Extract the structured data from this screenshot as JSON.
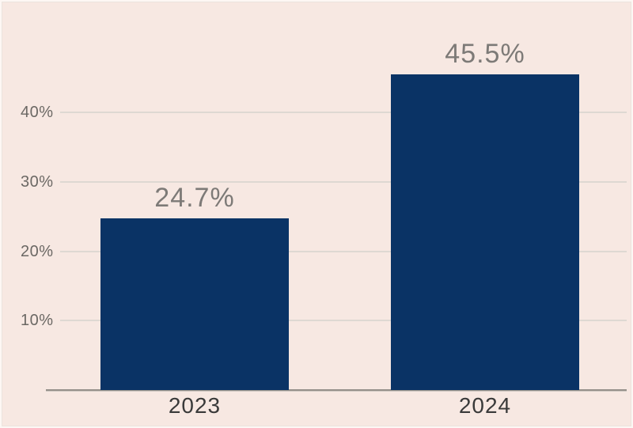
{
  "chart_data": {
    "type": "bar",
    "categories": [
      "2023",
      "2024"
    ],
    "values": [
      24.7,
      45.5
    ],
    "value_labels": [
      "24.7%",
      "45.5%"
    ],
    "title": "",
    "xlabel": "",
    "ylabel": "",
    "ylim": [
      0,
      50
    ],
    "yticks": [
      10,
      20,
      30,
      40
    ],
    "ytick_labels": [
      "10%",
      "20%",
      "30%",
      "40%"
    ],
    "grid": "horizontal",
    "legend_position": "none",
    "colors": {
      "background": "#f7e8e2",
      "bar": "#0a3365",
      "gridline": "#ded8d2",
      "axis_line": "#95908a",
      "value_label": "#7d7a77",
      "tick_label": "#6b6864",
      "category_label": "#3a3a3a"
    }
  }
}
